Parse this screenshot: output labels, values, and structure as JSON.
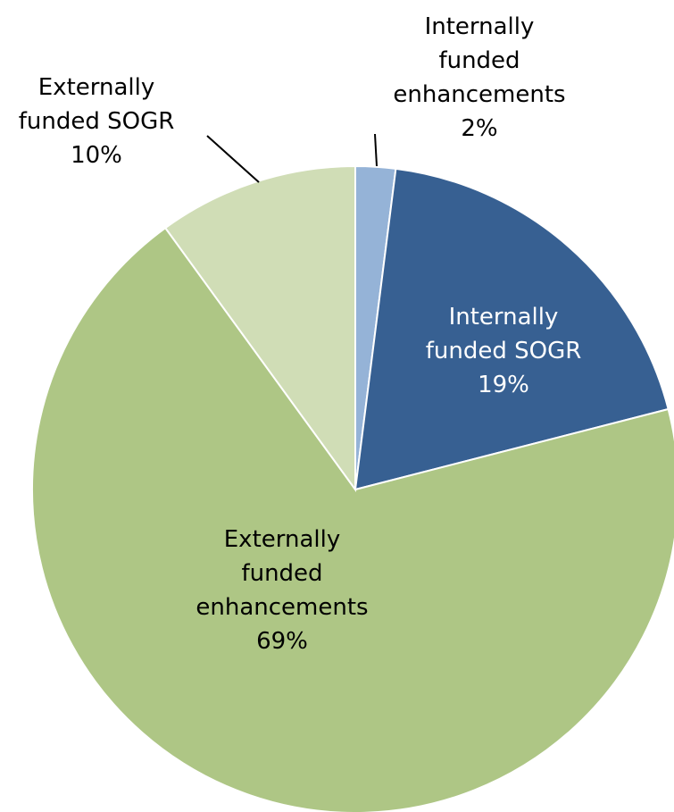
{
  "chart_data": {
    "type": "pie",
    "title": "",
    "slices": [
      {
        "label": [
          "Internally",
          "funded",
          "enhancements"
        ],
        "percent_label": "2%",
        "value": 2,
        "color": "#95b3d7",
        "label_color": "#000000"
      },
      {
        "label": [
          "Internally",
          "funded SOGR"
        ],
        "percent_label": "19%",
        "value": 19,
        "color": "#376092",
        "label_color": "#ffffff"
      },
      {
        "label": [
          "Externally",
          "funded",
          "enhancements"
        ],
        "percent_label": "69%",
        "value": 69,
        "color": "#aec685",
        "label_color": "#000000"
      },
      {
        "label": [
          "Externally",
          "funded SOGR"
        ],
        "percent_label": "10%",
        "value": 10,
        "color": "#d0ddb6",
        "label_color": "#000000"
      }
    ],
    "start_angle_deg": 0,
    "direction": "clockwise",
    "legend": "none"
  }
}
